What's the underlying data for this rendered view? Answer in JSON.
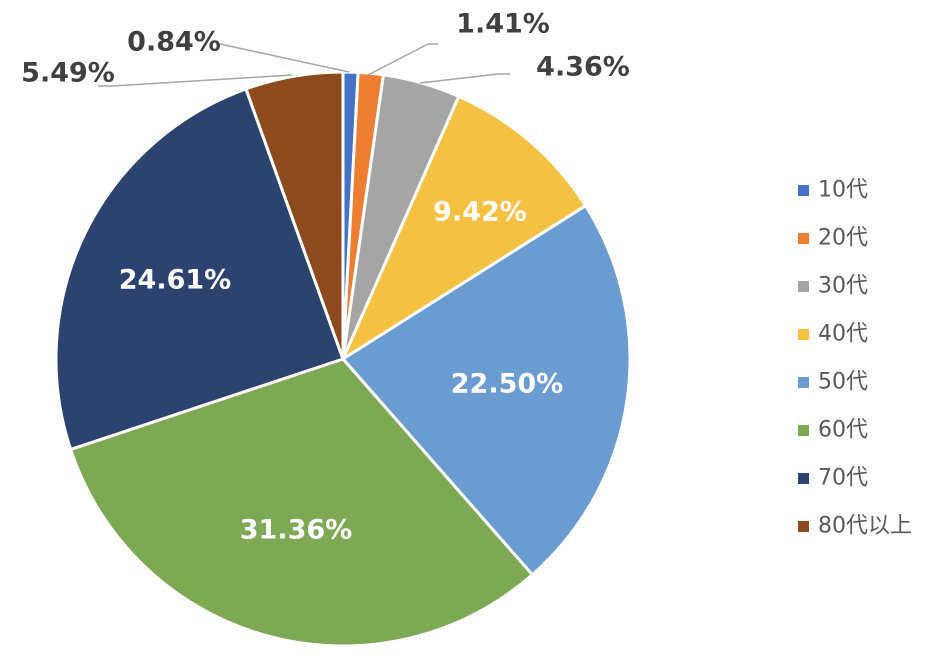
{
  "chart_data": {
    "type": "pie",
    "title": "",
    "slices": [
      {
        "label": "10代",
        "value": 0.84,
        "display": "0.84%",
        "color": "#4472C4"
      },
      {
        "label": "20代",
        "value": 1.41,
        "display": "1.41%",
        "color": "#ED7D31"
      },
      {
        "label": "30代",
        "value": 4.36,
        "display": "4.36%",
        "color": "#A5A5A5"
      },
      {
        "label": "40代",
        "value": 9.42,
        "display": "9.42%",
        "color": "#F5C142"
      },
      {
        "label": "50代",
        "value": 22.5,
        "display": "22.50%",
        "color": "#6A9BD1"
      },
      {
        "label": "60代",
        "value": 31.36,
        "display": "31.36%",
        "color": "#7EA954"
      },
      {
        "label": "70代",
        "value": 24.61,
        "display": "24.61%",
        "color": "#2C4370"
      },
      {
        "label": "80代以上",
        "value": 5.49,
        "display": "5.49%",
        "color": "#8E4A1F"
      }
    ],
    "legend_position": "right",
    "start_angle": "12 o'clock",
    "direction": "clockwise",
    "colors": {
      "outside_label": "#404040",
      "inside_label": "#ffffff",
      "leader_line": "#A6A6A6",
      "slice_border": "#ffffff"
    }
  }
}
